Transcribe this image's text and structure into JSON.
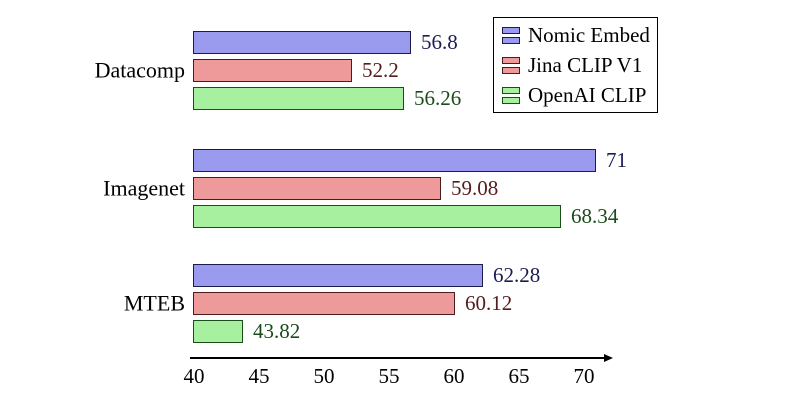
{
  "chart_data": {
    "type": "bar",
    "orientation": "horizontal",
    "title": "",
    "categories": [
      "Datacomp",
      "Imagenet",
      "MTEB"
    ],
    "series": [
      {
        "name": "Nomic Embed",
        "values": [
          56.8,
          71,
          62.28
        ],
        "labels": [
          "56.8",
          "71",
          "62.28"
        ],
        "fill": "#9a9aee",
        "border": "#1b1b4d",
        "label_color": "#1c1c55"
      },
      {
        "name": "Jina CLIP V1",
        "values": [
          52.2,
          59.08,
          60.12
        ],
        "labels": [
          "52.2",
          "59.08",
          "60.12"
        ],
        "fill": "#ef9a9a",
        "border": "#4d1b1b",
        "label_color": "#551c1c"
      },
      {
        "name": "OpenAI CLIP",
        "values": [
          56.26,
          68.34,
          43.82
        ],
        "labels": [
          "56.26",
          "68.34",
          "43.82"
        ],
        "fill": "#a6f0a0",
        "border": "#1b4d1b",
        "label_color": "#1c4a1c"
      }
    ],
    "xticks": [
      "40",
      "45",
      "50",
      "55",
      "60",
      "65",
      "70"
    ],
    "xlim": [
      40,
      72
    ],
    "xlabel": "",
    "ylabel": "",
    "grid": false,
    "legend": {
      "position": "top-right",
      "entries": [
        "Nomic Embed",
        "Jina CLIP V1",
        "OpenAI CLIP"
      ]
    },
    "axis_color": "#000000",
    "text_color": "#000000"
  }
}
